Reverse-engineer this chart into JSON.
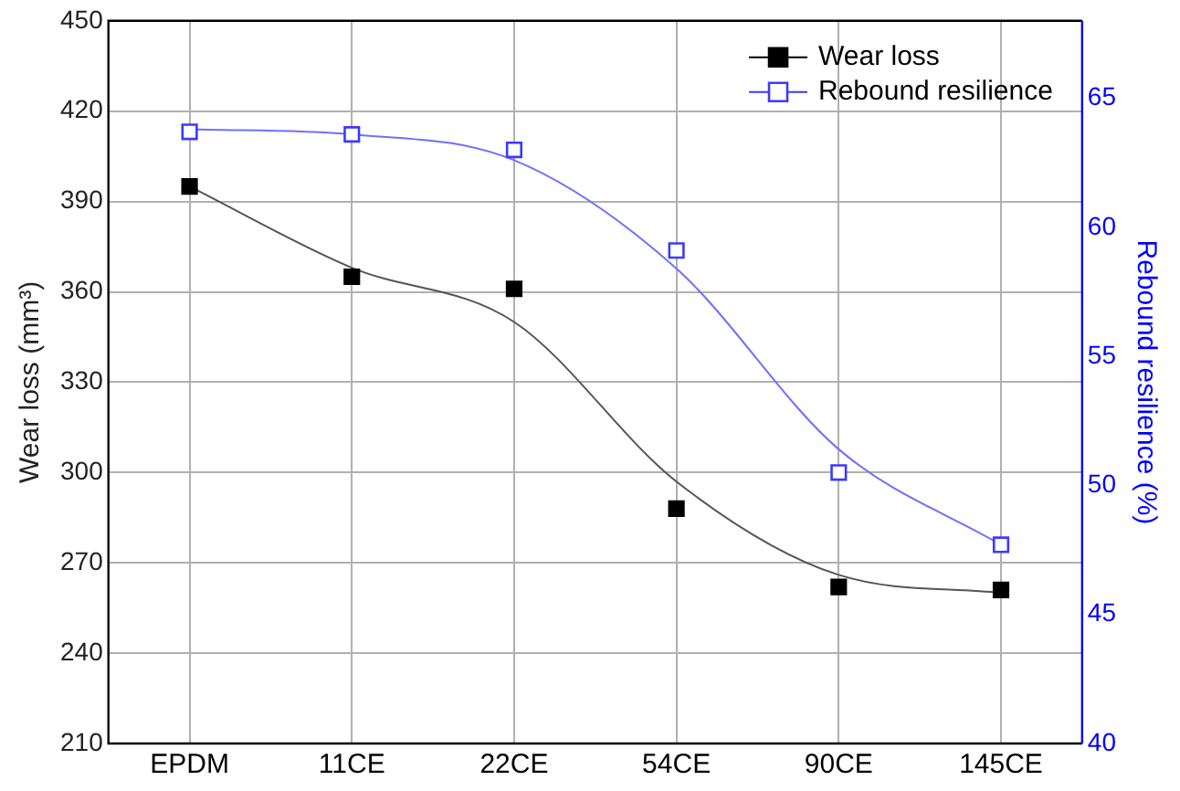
{
  "chart_data": {
    "type": "scatter",
    "categories": [
      "EPDM",
      "11CE",
      "22CE",
      "54CE",
      "90CE",
      "145CE"
    ],
    "ylabel": "Wear loss (mm³)",
    "y2label": "Rebound resilience (%)",
    "ylim": [
      210,
      450
    ],
    "yticks": [
      210,
      240,
      270,
      300,
      330,
      360,
      390,
      420,
      450
    ],
    "y2lim": [
      40,
      68
    ],
    "y2ticks": [
      40,
      45,
      50,
      55,
      60,
      65
    ],
    "grid": true,
    "legend": "top right",
    "series": [
      {
        "name": "Wear loss",
        "marker": "square",
        "color": "#000000",
        "values": [
          395,
          365,
          361,
          288,
          262,
          261
        ]
      },
      {
        "name": "Rebound resilience",
        "marker": "square",
        "color": "#3a3aff",
        "axis": "y2",
        "values": [
          63.7,
          63.6,
          63.0,
          59.1,
          50.5,
          47.7
        ]
      },
      {
        "type": "line",
        "marker": "none",
        "color": "#555555",
        "x": [
          "EPDM",
          "11CE",
          "22CE",
          "54CE",
          "90CE",
          "145CE"
        ],
        "values": [
          395,
          368,
          350,
          297,
          266,
          260
        ]
      },
      {
        "type": "line",
        "marker": "none",
        "color": "#6f6fff",
        "axis": "y2",
        "x": [
          "EPDM",
          "11CE",
          "22CE",
          "54CE",
          "90CE",
          "145CE"
        ],
        "values": [
          63.8,
          63.6,
          62.6,
          58.4,
          51.4,
          47.7
        ]
      }
    ]
  }
}
